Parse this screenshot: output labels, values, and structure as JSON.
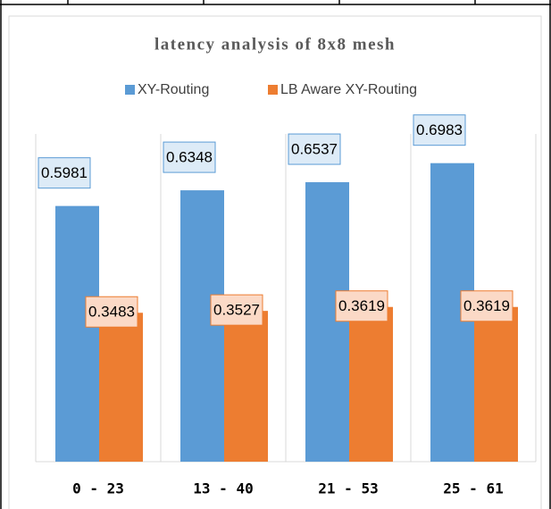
{
  "chart_data": {
    "type": "bar",
    "title": "latency analysis of 8x8 mesh",
    "categories": [
      "0 - 23",
      "13 - 40",
      "21 - 53",
      "25 - 61"
    ],
    "series": [
      {
        "name": "XY-Routing",
        "color": "#5b9bd5",
        "values": [
          0.5981,
          0.6348,
          0.6537,
          0.6983
        ]
      },
      {
        "name": "LB Aware XY-Routing",
        "color": "#ed7d31",
        "values": [
          0.3483,
          0.3527,
          0.3619,
          0.3619
        ]
      }
    ],
    "ylim": [
      0,
      0.8
    ]
  }
}
